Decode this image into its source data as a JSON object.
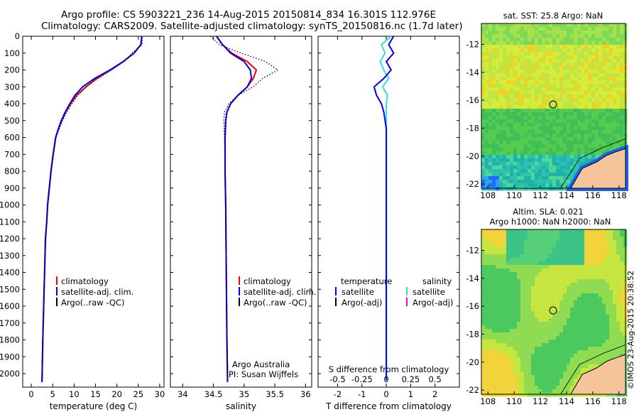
{
  "title_line1": "Argo profile: CS 5903221_236 14-Aug-2015 20150814_834 16.301S 112.976E",
  "title_line2": "Climatology: CARS2009. Satellite-adjusted climatology: synTS_20150816.nc (1.7d later)",
  "stamp": "©IMOS 23-Aug-2015 20:38:52",
  "colors": {
    "climatology": "#ff0000",
    "satellite": "#0000ee",
    "argo": "#000000",
    "sal_satellite": "#33dddd",
    "sal_argo": "#ee00ee"
  },
  "chart_data": [
    {
      "type": "line",
      "name": "temperature",
      "xlabel": "temperature (deg C)",
      "ylabel": "",
      "xlim": [
        -2,
        31
      ],
      "ylim": [
        2080,
        0
      ],
      "xticks": [
        0,
        5,
        10,
        15,
        20,
        25,
        30
      ],
      "yticks": [
        0,
        100,
        200,
        300,
        400,
        500,
        600,
        700,
        800,
        900,
        1000,
        1100,
        1200,
        1300,
        1400,
        1500,
        1600,
        1700,
        1800,
        1900,
        2000
      ],
      "legend": [
        "climatology",
        "satellite-adj. clim.",
        "Argo(..raw -QC)"
      ],
      "series": [
        {
          "name": "climatology",
          "x": [
            25.8,
            25.6,
            24.0,
            21.5,
            18.5,
            15.3,
            12.8,
            10.6,
            9.2,
            8.0,
            7.1,
            6.3,
            5.7,
            5.1,
            4.6,
            4.2,
            3.8,
            3.6,
            3.3,
            3.1,
            2.9,
            2.7,
            2.5
          ],
          "y": [
            0,
            50,
            100,
            150,
            200,
            250,
            300,
            350,
            400,
            450,
            500,
            550,
            600,
            700,
            800,
            900,
            1000,
            1100,
            1200,
            1400,
            1600,
            1800,
            2050
          ]
        },
        {
          "name": "satellite-adj. clim.",
          "x": [
            25.8,
            25.6,
            24.0,
            21.5,
            18.4,
            14.8,
            12.0,
            10.2,
            9.0,
            7.9,
            7.0,
            6.3,
            5.7,
            5.1,
            4.6,
            4.2,
            3.8,
            3.6,
            3.3,
            3.1,
            2.9,
            2.7,
            2.5
          ],
          "y": [
            0,
            50,
            100,
            150,
            200,
            250,
            300,
            350,
            400,
            450,
            500,
            550,
            600,
            700,
            800,
            900,
            1000,
            1100,
            1200,
            1400,
            1600,
            1800,
            2050
          ]
        },
        {
          "name": "Argo(..raw -QC)",
          "x": [
            25.9,
            25.9,
            23.5,
            21.7,
            18.8,
            15.6,
            12.8,
            10.9,
            9.5,
            8.3,
            7.3,
            6.5,
            5.8,
            5.2,
            4.7,
            4.3,
            3.9,
            3.6,
            3.4,
            3.1,
            2.9,
            2.7,
            2.6
          ],
          "y": [
            5,
            50,
            100,
            150,
            200,
            250,
            300,
            350,
            400,
            450,
            500,
            550,
            600,
            700,
            800,
            900,
            1000,
            1100,
            1200,
            1400,
            1600,
            1800,
            2040
          ]
        }
      ]
    },
    {
      "type": "line",
      "name": "salinity",
      "xlabel": "salinity",
      "xlim": [
        33.8,
        36.1
      ],
      "ylim": [
        2080,
        0
      ],
      "xticks": [
        34,
        34.5,
        35,
        35.5,
        36
      ],
      "legend": [
        "climatology",
        "satellite-adj. clim.",
        "Argo(..raw -QC)"
      ],
      "annotation": [
        "Argo Australia",
        "PI: Susan Wijffels"
      ],
      "series": [
        {
          "name": "climatology",
          "x": [
            34.55,
            34.65,
            34.8,
            35.05,
            35.2,
            35.15,
            35.05,
            34.9,
            34.78,
            34.72,
            34.7,
            34.69,
            34.69,
            34.7,
            34.71,
            34.72,
            34.73
          ],
          "y": [
            0,
            50,
            100,
            150,
            200,
            250,
            300,
            350,
            400,
            450,
            500,
            600,
            800,
            1000,
            1400,
            1800,
            2050
          ]
        },
        {
          "name": "satellite-adj. clim.",
          "x": [
            34.55,
            34.65,
            34.78,
            35.0,
            35.1,
            35.12,
            35.05,
            34.9,
            34.78,
            34.72,
            34.7,
            34.69,
            34.69,
            34.7,
            34.71,
            34.72,
            34.73
          ],
          "y": [
            0,
            50,
            100,
            150,
            200,
            250,
            300,
            350,
            400,
            450,
            500,
            600,
            800,
            1000,
            1400,
            1800,
            2050
          ]
        },
        {
          "name": "Argo(..raw -QC)",
          "x": [
            34.45,
            34.6,
            34.95,
            35.35,
            35.55,
            35.3,
            35.15,
            34.9,
            34.75,
            34.68,
            34.67,
            34.68,
            34.69,
            34.7,
            34.71,
            34.72,
            34.73
          ],
          "y": [
            0,
            50,
            100,
            150,
            200,
            250,
            300,
            350,
            400,
            450,
            500,
            600,
            800,
            1000,
            1400,
            1800,
            2040
          ]
        }
      ]
    },
    {
      "type": "line",
      "name": "difference",
      "xlabel": "T difference from climatology",
      "xlabel_top": "S difference from climatology",
      "xlim": [
        -2.8,
        3.0
      ],
      "ylim": [
        2080,
        0
      ],
      "xticks": [
        -2,
        -1,
        0,
        1,
        2
      ],
      "xticks_s": [
        "-0.5",
        "-0.25",
        "0",
        "0.25",
        "0.5"
      ],
      "legend_headers": [
        "temperature",
        "salinity"
      ],
      "legend": [
        "satellite",
        "Argo(-adj)",
        "satellite",
        "Argo(-adj)"
      ],
      "series": [
        {
          "name": "temperature satellite",
          "x": [
            0.3,
            0.1,
            0.3,
            0.0,
            0.2,
            -0.1,
            -0.5,
            -0.4,
            -0.2,
            -0.1,
            0.0,
            0.0,
            0.0,
            0.0,
            0.0
          ],
          "y": [
            0,
            50,
            100,
            150,
            200,
            250,
            300,
            350,
            400,
            450,
            550,
            700,
            1000,
            1500,
            2040
          ]
        },
        {
          "name": "salinity satellite",
          "x": [
            0.2,
            -0.2,
            -0.05,
            -0.25,
            -0.1,
            0.1,
            -0.15,
            0.05,
            0.0,
            0.0,
            0.0,
            0.0,
            0.0,
            0.0
          ],
          "y": [
            0,
            50,
            100,
            150,
            200,
            250,
            300,
            350,
            400,
            500,
            700,
            1000,
            1500,
            2040
          ]
        }
      ]
    },
    {
      "type": "heatmap",
      "name": "sst_map",
      "title": "sat. SST: 25.8 Argo: NaN",
      "xticks": [
        108,
        110,
        112,
        114,
        116,
        118
      ],
      "yticks": [
        -12,
        -14,
        -16,
        -18,
        -20,
        -22
      ],
      "xlim": [
        107.5,
        118.5
      ],
      "ylim": [
        -22.3,
        -10.5
      ],
      "marker": [
        112.976,
        -16.301
      ]
    },
    {
      "type": "heatmap",
      "name": "sla_map",
      "title": "Altim. SLA: 0.021",
      "subtitle": "Argo h1000: NaN h2000: NaN",
      "xticks": [
        108,
        110,
        112,
        114,
        116,
        118
      ],
      "yticks": [
        -12,
        -14,
        -16,
        -18,
        -20,
        -22
      ],
      "xlim": [
        107.5,
        118.5
      ],
      "ylim": [
        -22.3,
        -10.5
      ],
      "marker": [
        112.976,
        -16.301
      ]
    }
  ]
}
